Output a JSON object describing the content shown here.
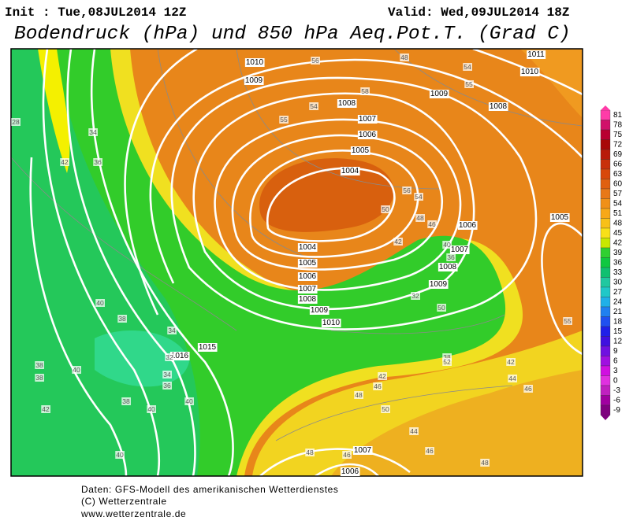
{
  "header": {
    "init": "Init : Tue,08JUL2014 12Z",
    "valid": "Valid: Wed,09JUL2014 18Z",
    "title": "Bodendruck (hPa) und 850 hPa Aeq.Pot.T. (Grad C)"
  },
  "colorbar": {
    "levels": [
      81,
      78,
      75,
      72,
      69,
      66,
      63,
      60,
      57,
      54,
      51,
      48,
      45,
      42,
      39,
      36,
      33,
      30,
      27,
      24,
      21,
      18,
      15,
      12,
      9,
      6,
      3,
      0,
      -3,
      -6,
      -9
    ],
    "colors": [
      "#ff3ca8",
      "#d0106a",
      "#b80030",
      "#a80808",
      "#b81a0a",
      "#c8300a",
      "#d8480a",
      "#e06010",
      "#e87818",
      "#f09018",
      "#f8a818",
      "#f8c018",
      "#f8e018",
      "#c8e800",
      "#30d030",
      "#10c840",
      "#10c070",
      "#20c8a0",
      "#20c8c8",
      "#20b0e8",
      "#2080f0",
      "#2050f0",
      "#2020e8",
      "#4010e0",
      "#7010e0",
      "#a010e0",
      "#d010e0",
      "#e030e0",
      "#c020c0",
      "#a000a0",
      "#800080"
    ]
  },
  "isobar_labels": [
    "1010",
    "1009",
    "1008",
    "1007",
    "1006",
    "1005",
    "1004",
    "1004",
    "1005",
    "1006",
    "1007",
    "1008",
    "1009",
    "1010",
    "1016",
    "1015",
    "1011",
    "1010",
    "1009",
    "1008",
    "1006",
    "1007",
    "1008",
    "1009",
    "1005",
    "1007",
    "1006"
  ],
  "theta_labels": [
    "56",
    "48",
    "54",
    "55",
    "58",
    "55",
    "54",
    "56",
    "54",
    "50",
    "48",
    "46",
    "42",
    "40",
    "36",
    "32",
    "38",
    "42",
    "44",
    "46",
    "40",
    "38",
    "34",
    "32",
    "34",
    "36",
    "38",
    "40",
    "40",
    "40",
    "40",
    "38",
    "38",
    "42",
    "34",
    "42",
    "36",
    "28",
    "46",
    "48",
    "50",
    "44",
    "46",
    "48",
    "48",
    "46",
    "42",
    "52",
    "50",
    "55"
  ],
  "footer": [
    "Daten: GFS-Modell des amerikanischen Wetterdienstes",
    "(C) Wetterzentrale",
    "www.wetterzentrale.de"
  ]
}
